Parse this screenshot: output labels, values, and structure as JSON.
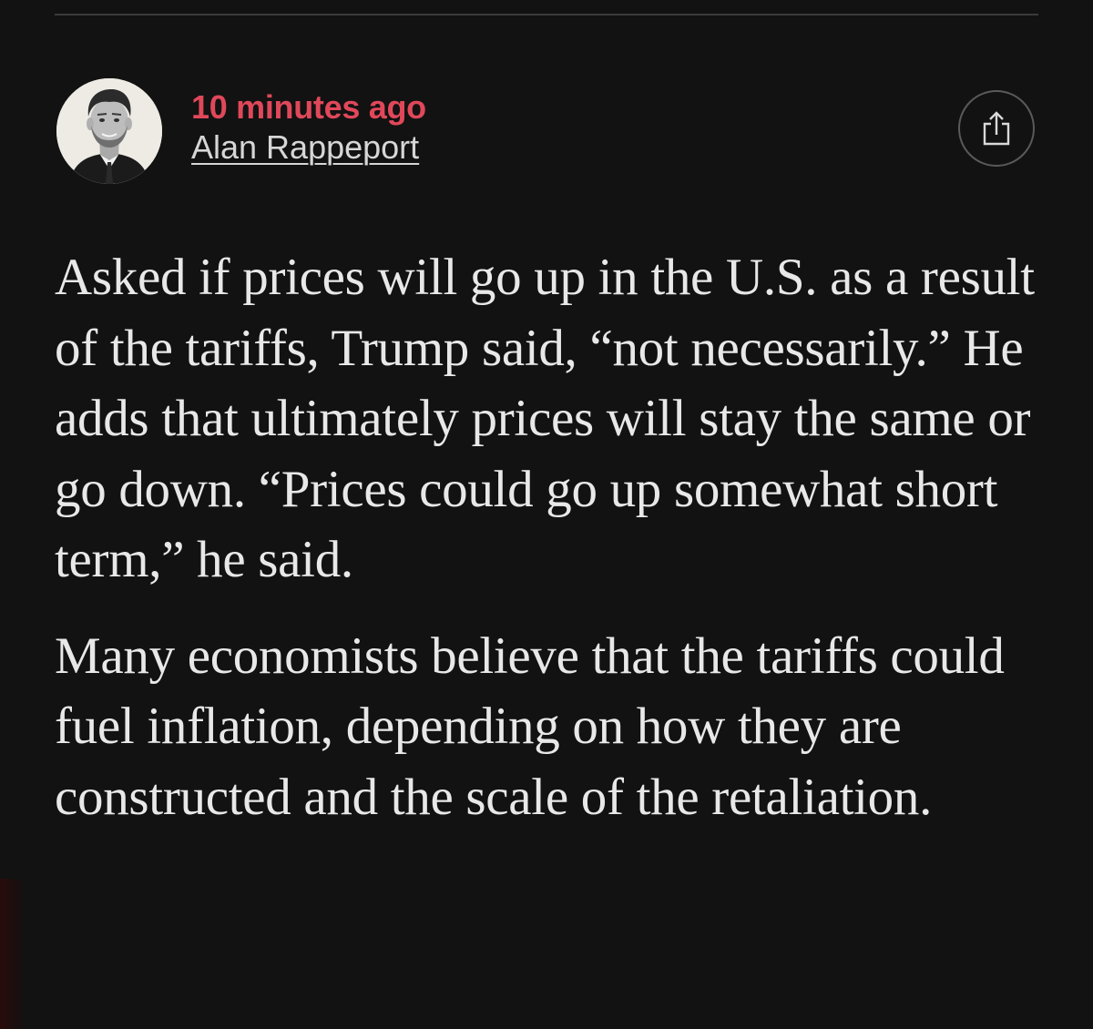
{
  "post": {
    "timestamp": "10 minutes ago",
    "author": "Alan Rappeport",
    "avatar_icon": "author-portrait",
    "share_icon": "share-icon",
    "accent_color": "#e0485a"
  },
  "article": {
    "paragraphs": [
      "Asked if prices will go up in the U.S. as a result of the tariffs, Trump said, “not necessarily.” He adds that ultimately prices will stay the same or go down. “Prices could go up somewhat short term,” he said.",
      "Many economists believe that the tariffs could fuel inflation, depending on how they are constructed and the scale of the retaliation."
    ]
  }
}
